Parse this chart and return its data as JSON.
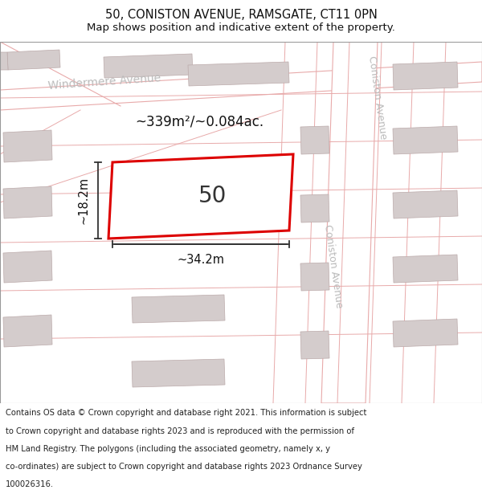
{
  "title": "50, CONISTON AVENUE, RAMSGATE, CT11 0PN",
  "subtitle": "Map shows position and indicative extent of the property.",
  "footer_lines": [
    "Contains OS data © Crown copyright and database right 2021. This information is subject to Crown copyright and database rights 2023 and is reproduced with the permission of",
    "HM Land Registry. The polygons (including the associated geometry, namely x, y co-ordinates) are subject to Crown copyright and database rights 2023 Ordnance Survey",
    "100026316."
  ],
  "map_bg": "#f2eeee",
  "road_color": "#e8aaaa",
  "road_fill": "#f5f0f0",
  "building_fill": "#d4cccc",
  "building_edge": "#bbaaaa",
  "highlight_color": "#dd0000",
  "highlight_fill": "#ffffff",
  "dim_color": "#333333",
  "area_label": "~339m²/~0.084ac.",
  "width_label": "~34.2m",
  "height_label": "~18.2m",
  "plot_number": "50",
  "title_fontsize": 10.5,
  "subtitle_fontsize": 9.5,
  "footer_fontsize": 7.2,
  "street_label_color": "#bbbbbb",
  "windermere_label": "Windermere Avenue",
  "coniston_label_top": "Coniston Avenue",
  "coniston_label_bot": "Coniston Avenue"
}
